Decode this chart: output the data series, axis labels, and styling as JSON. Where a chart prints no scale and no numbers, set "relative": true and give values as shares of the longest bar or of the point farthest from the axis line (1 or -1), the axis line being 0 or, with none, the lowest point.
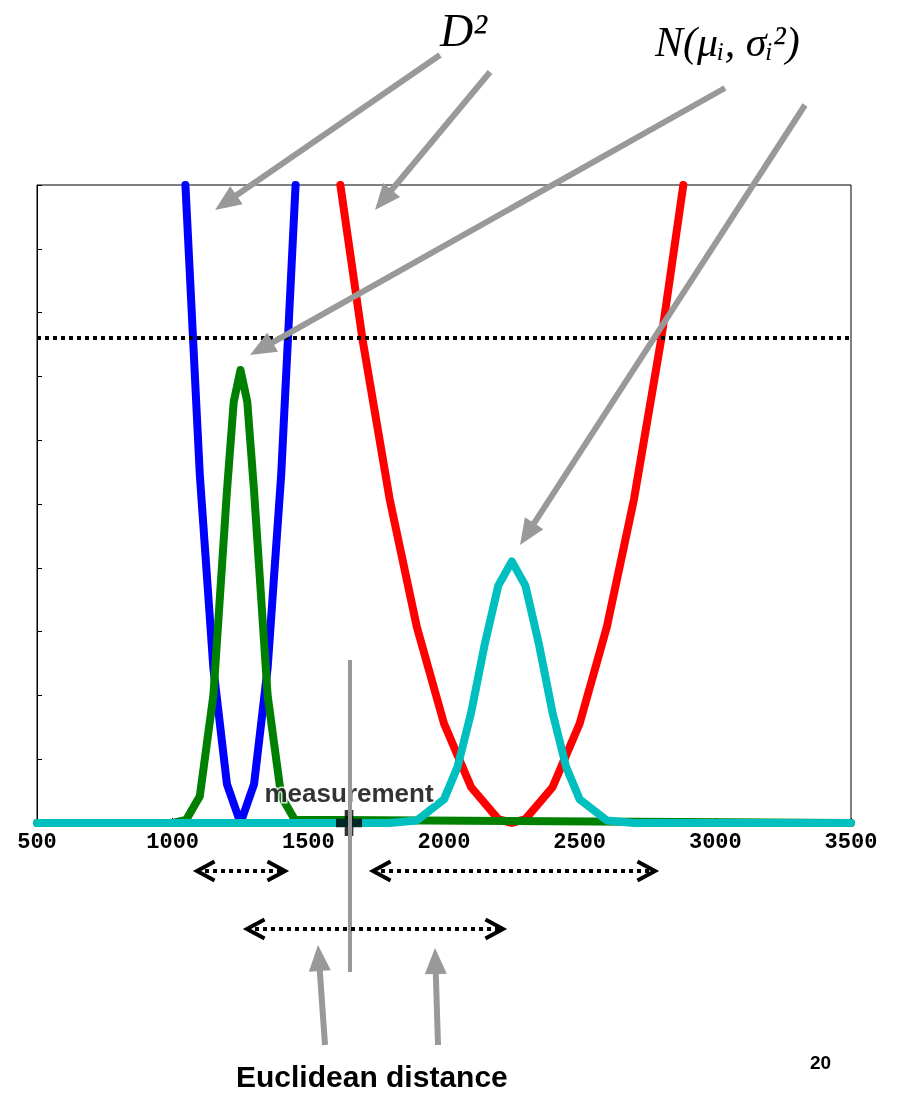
{
  "chart_data": {
    "type": "line",
    "relative": true,
    "xlim": [
      500,
      3500
    ],
    "xticks": [
      500,
      1000,
      1500,
      2000,
      2500,
      3000,
      3500
    ],
    "tick_labels": "x",
    "grid": false,
    "legend": false,
    "marker": "none",
    "line_style": "solid",
    "series": [
      {
        "color": "#0000ff",
        "x": [
          1047,
          1100,
          1150,
          1200,
          1250,
          1300,
          1350,
          1400,
          1453
        ],
        "values": [
          1,
          0.546,
          0.243,
          0.061,
          0,
          0.061,
          0.243,
          0.546,
          1
        ]
      },
      {
        "color": "#ff0000",
        "x": [
          1618,
          1700,
          1800,
          1900,
          2000,
          2100,
          2200,
          2250,
          2300,
          2400,
          2500,
          2600,
          2700,
          2800,
          2882
        ],
        "values": [
          1,
          0.757,
          0.507,
          0.307,
          0.156,
          0.056,
          0.006,
          0,
          0.006,
          0.056,
          0.156,
          0.307,
          0.507,
          0.757,
          1
        ]
      },
      {
        "color": "#008000",
        "x": [
          500,
          1000,
          1050,
          1100,
          1150,
          1200,
          1225,
          1250,
          1275,
          1300,
          1350,
          1400,
          1450,
          3500
        ],
        "values": [
          0,
          0,
          0.005,
          0.042,
          0.2,
          0.52,
          0.66,
          0.71,
          0.66,
          0.52,
          0.2,
          0.042,
          0.005,
          0
        ]
      },
      {
        "color": "#00bfbf",
        "x": [
          500,
          1800,
          1900,
          2000,
          2050,
          2100,
          2150,
          2200,
          2250,
          2300,
          2350,
          2400,
          2450,
          2500,
          2600,
          2700,
          3500
        ],
        "values": [
          0,
          0,
          0.004,
          0.037,
          0.088,
          0.173,
          0.28,
          0.372,
          0.41,
          0.372,
          0.28,
          0.173,
          0.088,
          0.037,
          0.004,
          0,
          0
        ]
      },
      {
        "name": "measurement",
        "type": "scatter",
        "marker": "cross",
        "color": "#000000",
        "x": [
          1650
        ],
        "values": [
          0
        ]
      }
    ],
    "ref_lines": [
      {
        "axis": "y",
        "value": 0.763,
        "color": "#000000",
        "line_style": "dotted"
      }
    ],
    "annotations": [
      "D²",
      "N(μᵢ, σᵢ²)",
      "Euclidean distance",
      "20"
    ]
  }
}
